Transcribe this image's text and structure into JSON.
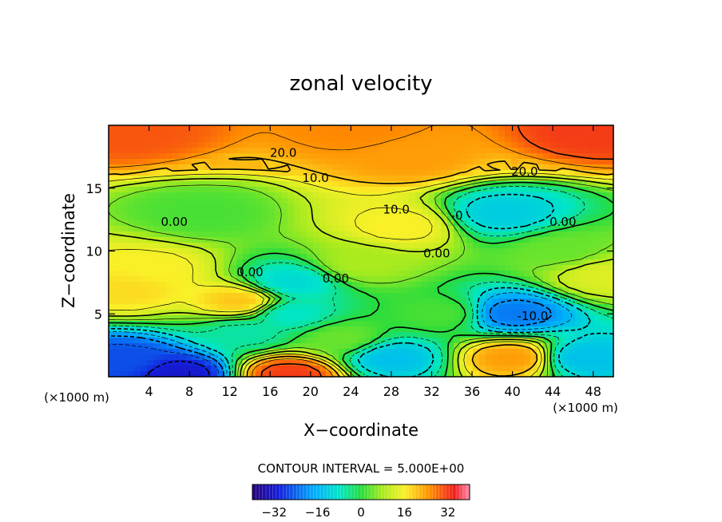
{
  "chart_data": {
    "type": "heatmap",
    "title": "zonal velocity",
    "xlabel": "X−coordinate",
    "ylabel": "Z−coordinate",
    "x_unit_left": "(×1000 m)",
    "x_unit_right": "(×1000 m)",
    "xlim": [
      0,
      50
    ],
    "ylim": [
      0,
      20
    ],
    "x_ticks": [
      4,
      8,
      12,
      16,
      20,
      24,
      28,
      32,
      36,
      40,
      44,
      48
    ],
    "y_ticks": [
      5,
      10,
      15
    ],
    "contour_interval_label": "CONTOUR INTERVAL = 5.000E+00",
    "colorbar": {
      "range": [
        -40,
        40
      ],
      "ticks": [
        -32,
        -16,
        0,
        16,
        32
      ],
      "tick_labels": [
        "−32",
        "−16",
        "0",
        "16",
        "32"
      ]
    },
    "contour_labels": [
      {
        "text": "20.0",
        "x": 17.3,
        "z": 17.5
      },
      {
        "text": "20.0",
        "x": 41.2,
        "z": 16.0
      },
      {
        "text": "10.0",
        "x": 20.5,
        "z": 15.5
      },
      {
        "text": "10.0",
        "x": 28.5,
        "z": 13.0
      },
      {
        "text": "0.00",
        "x": 6.5,
        "z": 12.0
      },
      {
        "text": "0.00",
        "x": 32.5,
        "z": 9.5
      },
      {
        "text": "0.00",
        "x": 14.0,
        "z": 8.0
      },
      {
        "text": "0.00",
        "x": 22.5,
        "z": 7.5
      },
      {
        "text": "0.00",
        "x": 45.0,
        "z": 12.0
      },
      {
        "text": "-0",
        "x": 34.5,
        "z": 12.5
      },
      {
        "text": "-10.0",
        "x": 42.0,
        "z": 4.5
      }
    ],
    "field_centers": [
      {
        "x": 25,
        "z": 19.8,
        "v": 26
      },
      {
        "x": 2,
        "z": 19.5,
        "v": 30
      },
      {
        "x": 48,
        "z": 19.5,
        "v": 32
      },
      {
        "x": 30,
        "z": 17.5,
        "v": 24
      },
      {
        "x": 4,
        "z": 8.5,
        "v": 16
      },
      {
        "x": 2,
        "z": 7,
        "v": 18
      },
      {
        "x": 13,
        "z": 6,
        "v": 20
      },
      {
        "x": 29,
        "z": 12,
        "v": 16
      },
      {
        "x": 25,
        "z": 9,
        "v": 8
      },
      {
        "x": 18,
        "z": 7.5,
        "v": -10
      },
      {
        "x": 18,
        "z": 5,
        "v": -8
      },
      {
        "x": 40,
        "z": 5,
        "v": -22
      },
      {
        "x": 39,
        "z": 13,
        "v": -12
      },
      {
        "x": 49,
        "z": 8,
        "v": 13
      },
      {
        "x": 1.5,
        "z": 1.3,
        "v": -26
      },
      {
        "x": 7,
        "z": 0.2,
        "v": -32
      },
      {
        "x": 13.5,
        "z": 3.5,
        "v": -6
      },
      {
        "x": 28,
        "z": 1.5,
        "v": -14
      },
      {
        "x": 18,
        "z": 0.2,
        "v": 32
      },
      {
        "x": 40,
        "z": 1.5,
        "v": 24
      },
      {
        "x": 47,
        "z": 1.5,
        "v": -14
      },
      {
        "x": 23,
        "z": 3,
        "v": 4
      },
      {
        "x": 9,
        "z": 13,
        "v": 2
      },
      {
        "x": 45,
        "z": 10,
        "v": 4
      },
      {
        "x": 33,
        "z": 5,
        "v": 2
      }
    ]
  }
}
